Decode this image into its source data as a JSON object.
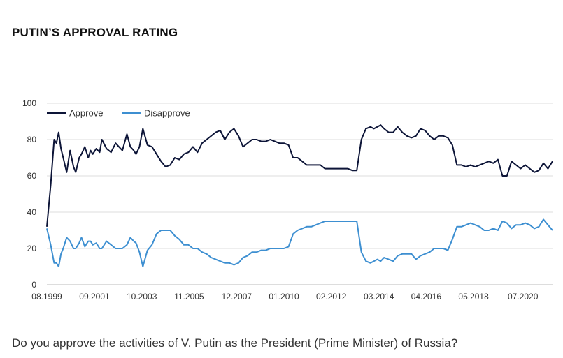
{
  "header": {
    "title": "PUTIN’S APPROVAL RATING"
  },
  "footer": {
    "question": "Do you approve the activities of V. Putin as the President (Prime Minister) of Russia?"
  },
  "chart_data": {
    "type": "line",
    "title": "PUTIN’S APPROVAL RATING",
    "xlabel": "",
    "ylabel": "",
    "ylim": [
      0,
      100
    ],
    "yticks": [
      0,
      20,
      40,
      60,
      80,
      100
    ],
    "xlim": [
      1999.58,
      2021.8
    ],
    "xticks": [
      {
        "x": 1999.58,
        "label": "08.1999"
      },
      {
        "x": 2001.67,
        "label": "09.2001"
      },
      {
        "x": 2003.75,
        "label": "10.2003"
      },
      {
        "x": 2005.83,
        "label": "11.2005"
      },
      {
        "x": 2007.92,
        "label": "12.2007"
      },
      {
        "x": 2010.0,
        "label": "01.2010"
      },
      {
        "x": 2012.08,
        "label": "02.2012"
      },
      {
        "x": 2014.17,
        "label": "03.2014"
      },
      {
        "x": 2016.25,
        "label": "04.2016"
      },
      {
        "x": 2018.33,
        "label": "05.2018"
      },
      {
        "x": 2020.5,
        "label": "07.2020"
      }
    ],
    "grid": true,
    "legend": "top-left",
    "colors": {
      "approve": "#0d1538",
      "disapprove": "#3d8fd1",
      "grid": "#dddddd",
      "axis": "#bbbbbb"
    },
    "series": [
      {
        "name": "Approve",
        "x": [
          1999.58,
          1999.75,
          1999.9,
          2000.0,
          2000.1,
          2000.2,
          2000.3,
          2000.45,
          2000.6,
          2000.75,
          2000.85,
          2001.0,
          2001.1,
          2001.25,
          2001.4,
          2001.5,
          2001.6,
          2001.75,
          2001.9,
          2002.0,
          2002.2,
          2002.4,
          2002.6,
          2002.75,
          2002.9,
          2003.1,
          2003.25,
          2003.4,
          2003.5,
          2003.65,
          2003.8,
          2004.0,
          2004.2,
          2004.4,
          2004.6,
          2004.8,
          2005.0,
          2005.2,
          2005.4,
          2005.6,
          2005.8,
          2006.0,
          2006.2,
          2006.4,
          2006.6,
          2006.8,
          2007.0,
          2007.2,
          2007.4,
          2007.6,
          2007.8,
          2008.0,
          2008.2,
          2008.4,
          2008.6,
          2008.8,
          2009.0,
          2009.2,
          2009.4,
          2009.6,
          2009.8,
          2010.0,
          2010.2,
          2010.4,
          2010.6,
          2010.8,
          2011.0,
          2011.2,
          2011.4,
          2011.6,
          2011.8,
          2012.0,
          2012.2,
          2012.4,
          2012.6,
          2012.8,
          2013.0,
          2013.2,
          2013.4,
          2013.6,
          2013.8,
          2013.95,
          2014.1,
          2014.25,
          2014.4,
          2014.6,
          2014.8,
          2015.0,
          2015.2,
          2015.4,
          2015.6,
          2015.8,
          2016.0,
          2016.2,
          2016.4,
          2016.6,
          2016.8,
          2017.0,
          2017.2,
          2017.4,
          2017.6,
          2017.8,
          2018.0,
          2018.2,
          2018.4,
          2018.6,
          2018.8,
          2019.0,
          2019.2,
          2019.4,
          2019.6,
          2019.8,
          2020.0,
          2020.2,
          2020.4,
          2020.6,
          2020.8,
          2021.0,
          2021.2,
          2021.4,
          2021.6,
          2021.8
        ],
        "values": [
          32,
          55,
          80,
          78,
          84,
          75,
          70,
          62,
          74,
          65,
          62,
          70,
          72,
          76,
          70,
          74,
          72,
          75,
          73,
          80,
          75,
          73,
          78,
          76,
          74,
          83,
          76,
          74,
          72,
          76,
          86,
          77,
          76,
          72,
          68,
          65,
          66,
          70,
          69,
          72,
          73,
          76,
          73,
          78,
          80,
          82,
          84,
          85,
          80,
          84,
          86,
          82,
          76,
          78,
          80,
          80,
          79,
          79,
          80,
          79,
          78,
          78,
          77,
          70,
          70,
          68,
          66,
          66,
          66,
          66,
          64,
          64,
          64,
          64,
          64,
          64,
          63,
          63,
          80,
          86,
          87,
          86,
          87,
          88,
          86,
          84,
          84,
          87,
          84,
          82,
          81,
          82,
          86,
          85,
          82,
          80,
          82,
          82,
          81,
          77,
          66,
          66,
          65,
          66,
          65,
          66,
          67,
          68,
          67,
          69,
          60,
          60,
          68,
          66,
          64,
          66,
          64,
          62,
          63,
          67,
          64,
          68
        ]
      },
      {
        "name": "Disapprove",
        "x": [
          1999.58,
          1999.75,
          1999.9,
          2000.0,
          2000.1,
          2000.2,
          2000.3,
          2000.45,
          2000.6,
          2000.75,
          2000.85,
          2001.0,
          2001.1,
          2001.25,
          2001.4,
          2001.5,
          2001.6,
          2001.75,
          2001.9,
          2002.0,
          2002.2,
          2002.4,
          2002.6,
          2002.75,
          2002.9,
          2003.1,
          2003.25,
          2003.4,
          2003.5,
          2003.65,
          2003.8,
          2004.0,
          2004.2,
          2004.4,
          2004.6,
          2004.8,
          2005.0,
          2005.2,
          2005.4,
          2005.6,
          2005.8,
          2006.0,
          2006.2,
          2006.4,
          2006.6,
          2006.8,
          2007.0,
          2007.2,
          2007.4,
          2007.6,
          2007.8,
          2008.0,
          2008.2,
          2008.4,
          2008.6,
          2008.8,
          2009.0,
          2009.2,
          2009.4,
          2009.6,
          2009.8,
          2010.0,
          2010.2,
          2010.4,
          2010.6,
          2010.8,
          2011.0,
          2011.2,
          2011.4,
          2011.6,
          2011.8,
          2012.0,
          2012.2,
          2012.4,
          2012.6,
          2012.8,
          2013.0,
          2013.2,
          2013.4,
          2013.6,
          2013.8,
          2013.95,
          2014.1,
          2014.25,
          2014.4,
          2014.6,
          2014.8,
          2015.0,
          2015.2,
          2015.4,
          2015.6,
          2015.8,
          2016.0,
          2016.2,
          2016.4,
          2016.6,
          2016.8,
          2017.0,
          2017.2,
          2017.4,
          2017.6,
          2017.8,
          2018.0,
          2018.2,
          2018.4,
          2018.6,
          2018.8,
          2019.0,
          2019.2,
          2019.4,
          2019.6,
          2019.8,
          2020.0,
          2020.2,
          2020.4,
          2020.6,
          2020.8,
          2021.0,
          2021.2,
          2021.4,
          2021.6,
          2021.8
        ],
        "values": [
          31,
          22,
          12,
          12,
          10,
          17,
          20,
          26,
          24,
          20,
          20,
          23,
          26,
          21,
          24,
          24,
          22,
          23,
          20,
          20,
          24,
          22,
          20,
          20,
          20,
          22,
          26,
          24,
          23,
          18,
          10,
          19,
          22,
          28,
          30,
          30,
          30,
          27,
          25,
          22,
          22,
          20,
          20,
          18,
          17,
          15,
          14,
          13,
          12,
          12,
          11,
          12,
          15,
          16,
          18,
          18,
          19,
          19,
          20,
          20,
          20,
          20,
          21,
          28,
          30,
          31,
          32,
          32,
          33,
          34,
          35,
          35,
          35,
          35,
          35,
          35,
          35,
          35,
          18,
          13,
          12,
          13,
          14,
          13,
          15,
          14,
          13,
          16,
          17,
          17,
          17,
          14,
          16,
          17,
          18,
          20,
          20,
          20,
          19,
          25,
          32,
          32,
          33,
          34,
          33,
          32,
          30,
          30,
          31,
          30,
          35,
          34,
          31,
          33,
          33,
          34,
          33,
          31,
          32,
          36,
          33,
          30
        ]
      }
    ]
  }
}
